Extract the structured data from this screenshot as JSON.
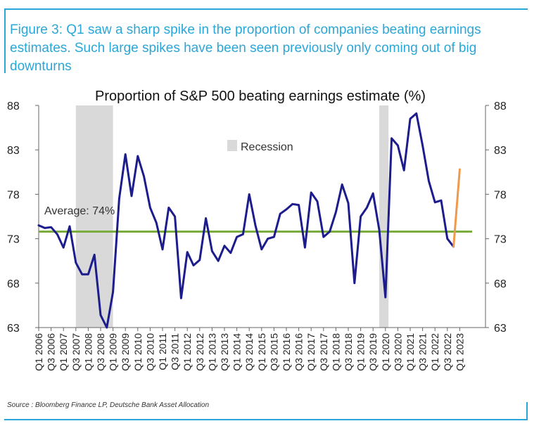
{
  "caption": "Figure 3: Q1 saw a sharp spike in the proportion of companies beating earnings estimates. Such large spikes have been seen previously only coming out of big downturns",
  "source": "Source : Bloomberg Finance LP, Deutsche Bank Asset Allocation",
  "colors": {
    "accent": "#2aa7d8",
    "series": "#1c1c8c",
    "latest": "#f0994a",
    "average": "#7aac3e",
    "recession": "#d9d9d9"
  },
  "chart_data": {
    "type": "line",
    "title": "Proportion of S&P 500 beating earnings estimate (%)",
    "ylim": [
      63,
      88
    ],
    "y_ticks": [
      "63",
      "68",
      "73",
      "78",
      "83",
      "88"
    ],
    "legend": {
      "label": "Recession",
      "placement": "top-center"
    },
    "average": {
      "label": "Average: 74%",
      "value": 73.8
    },
    "x_ticks": [
      "Q1 2006",
      "Q3 2006",
      "Q1 2007",
      "Q3 2007",
      "Q1 2008",
      "Q3 2008",
      "Q1 2009",
      "Q3 2009",
      "Q1 2010",
      "Q3 2010",
      "Q1 2011",
      "Q3 2011",
      "Q1 2012",
      "Q3 2012",
      "Q1 2013",
      "Q3 2013",
      "Q1 2014",
      "Q3 2014",
      "Q1 2015",
      "Q3 2015",
      "Q1 2016",
      "Q3 2016",
      "Q1 2017",
      "Q3 2017",
      "Q1 2018",
      "Q3 2018",
      "Q1 2019",
      "Q3 2019",
      "Q1 2020",
      "Q3 2020",
      "Q1 2021",
      "Q3 2021",
      "Q1 2022",
      "Q3 2022",
      "Q1 2023"
    ],
    "x_unit": "quarter index from Q1 2006",
    "recessions": [
      [
        6,
        12
      ],
      [
        55,
        56.5
      ]
    ],
    "series": [
      {
        "values": [
          74.5,
          74.2,
          74.3,
          73.5,
          72,
          74.4,
          70.3,
          69,
          69,
          71.2,
          64.4,
          63,
          67,
          77.5,
          82.5,
          77.8,
          82.3,
          80,
          76.5,
          74.8,
          71.8,
          76.5,
          75.5,
          66.3,
          71.5,
          70,
          70.6,
          75.3,
          71.6,
          70.5,
          72.2,
          71.4,
          73.2,
          73.5,
          78,
          74.5,
          71.8,
          73,
          73.2,
          75.8,
          76.3,
          76.9,
          76.8,
          72,
          78.2,
          77.2,
          73.2,
          73.8,
          76,
          79.1,
          77,
          68,
          75.5,
          76.5,
          78.1,
          74,
          66.4,
          84.3,
          83.5,
          80.7,
          86.5,
          87.1,
          83.5,
          79.5,
          77.1,
          77.3,
          73,
          72.1
        ]
      },
      {
        "values": [
          72.1,
          80.8
        ],
        "start_index": 67
      }
    ]
  }
}
